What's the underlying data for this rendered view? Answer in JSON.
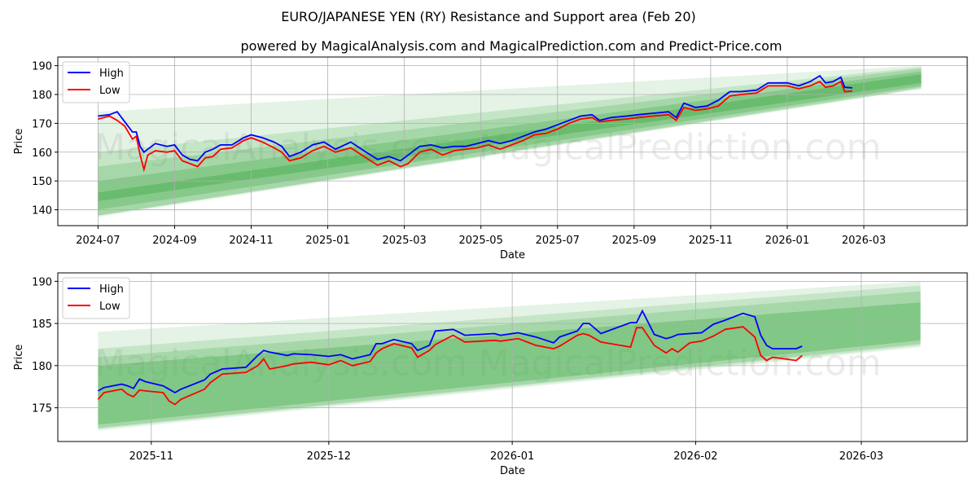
{
  "title": "EURO/JAPANESE YEN (RY) Resistance and Support area (Feb 20)",
  "subtitle": "powered by MagicalAnalysis.com and MagicalPrediction.com and Predict-Price.com",
  "watermarks": [
    "MagicalAnalysis.com",
    "MagicalPrediction.com"
  ],
  "colors": {
    "high": "#0000ff",
    "low": "#ff0000",
    "band": "#4caf50"
  },
  "chart_data": [
    {
      "type": "line",
      "xunit": "months since 2024-07-01",
      "xlabel": "Date",
      "ylabel": "Price",
      "ylim": [
        134.5,
        193
      ],
      "xlim": [
        -1.05,
        22.7
      ],
      "xticks": [
        {
          "v": 0,
          "label": "2024-07"
        },
        {
          "v": 2,
          "label": "2024-09"
        },
        {
          "v": 4,
          "label": "2024-11"
        },
        {
          "v": 6,
          "label": "2025-01"
        },
        {
          "v": 8,
          "label": "2025-03"
        },
        {
          "v": 10,
          "label": "2025-05"
        },
        {
          "v": 12,
          "label": "2025-07"
        },
        {
          "v": 14,
          "label": "2025-09"
        },
        {
          "v": 16,
          "label": "2025-11"
        },
        {
          "v": 18,
          "label": "2026-01"
        },
        {
          "v": 20,
          "label": "2026-03"
        }
      ],
      "yticks": [
        140,
        150,
        160,
        170,
        180,
        190
      ],
      "grid": true,
      "legend": "top-left",
      "legend_labels": [
        "High",
        "Low"
      ],
      "bands": {
        "x": [
          0,
          21.5
        ],
        "layers": [
          {
            "start": [
              137.5,
              174
            ],
            "end": [
              182,
              190
            ],
            "opacity": 0.15
          },
          {
            "start": [
              138,
              160
            ],
            "end": [
              182,
              189.5
            ],
            "opacity": 0.2
          },
          {
            "start": [
              138,
              155
            ],
            "end": [
              182.5,
              189
            ],
            "opacity": 0.25
          },
          {
            "start": [
              140,
              150
            ],
            "end": [
              183,
              188
            ],
            "opacity": 0.35
          },
          {
            "start": [
              143,
              146
            ],
            "end": [
              184,
              187
            ],
            "opacity": 0.5
          }
        ]
      },
      "x": [
        0,
        0.3,
        0.5,
        0.7,
        0.9,
        1.0,
        1.1,
        1.2,
        1.3,
        1.5,
        1.8,
        2.0,
        2.2,
        2.4,
        2.6,
        2.8,
        3.0,
        3.2,
        3.5,
        3.8,
        4.0,
        4.3,
        4.6,
        4.8,
        5.0,
        5.3,
        5.6,
        5.9,
        6.2,
        6.6,
        7.0,
        7.3,
        7.6,
        7.9,
        8.1,
        8.4,
        8.7,
        9.0,
        9.3,
        9.6,
        9.9,
        10.2,
        10.5,
        10.8,
        11.1,
        11.4,
        11.7,
        12.0,
        12.3,
        12.6,
        12.9,
        13.1,
        13.4,
        13.8,
        14.1,
        14.5,
        14.9,
        15.1,
        15.3,
        15.6,
        15.9,
        16.2,
        16.5,
        16.8,
        17.2,
        17.5,
        18.0,
        18.3,
        18.6,
        18.85,
        19.0,
        19.2,
        19.4,
        19.5,
        19.7
      ],
      "series": [
        {
          "name": "High",
          "values": [
            172.5,
            173,
            174,
            170.5,
            167,
            167,
            162,
            160,
            161,
            163,
            162,
            162.5,
            159,
            157.5,
            157,
            160,
            161,
            162.5,
            162.5,
            165,
            166,
            165,
            163.5,
            162,
            158.5,
            160,
            162.5,
            163.5,
            161,
            163.5,
            160,
            157.5,
            158.5,
            157,
            159,
            162,
            162.5,
            161.5,
            162,
            162,
            163,
            164,
            163,
            164,
            165.5,
            167,
            168,
            169.5,
            171,
            172.5,
            173,
            171,
            172,
            172.5,
            173,
            173.5,
            174,
            172,
            177,
            175.5,
            176,
            178,
            181,
            181,
            181.5,
            184,
            184,
            183,
            184.5,
            186.5,
            184,
            184.5,
            186,
            182.5,
            182.3
          ]
        },
        {
          "name": "Low",
          "values": [
            171.5,
            172.5,
            171,
            169,
            164.5,
            165.5,
            159,
            154,
            159,
            160.5,
            160,
            160.5,
            157,
            156,
            155,
            158,
            158.5,
            161,
            161.5,
            164,
            165,
            163.5,
            161.5,
            160,
            157,
            158,
            160.5,
            162,
            160,
            161.5,
            158,
            155.5,
            157,
            155,
            156,
            160,
            161,
            159,
            160.5,
            161,
            161.5,
            162.5,
            161,
            162.5,
            164,
            166,
            166.5,
            168,
            170,
            171.5,
            172,
            170.5,
            171,
            171.5,
            172,
            172.5,
            173,
            171,
            175.5,
            174.5,
            175,
            176,
            179.5,
            180,
            180.5,
            183,
            183,
            182,
            183,
            184.5,
            182.5,
            183,
            184.5,
            181,
            181.2
          ]
        }
      ]
    },
    {
      "type": "line",
      "xunit": "days since 2025-11-01",
      "xlabel": "Date",
      "ylabel": "Price",
      "ylim": [
        171,
        191
      ],
      "xlim": [
        -15.8,
        137.9
      ],
      "xticks": [
        {
          "v": 0,
          "label": "2025-11"
        },
        {
          "v": 30,
          "label": "2025-12"
        },
        {
          "v": 61,
          "label": "2026-01"
        },
        {
          "v": 92,
          "label": "2026-02"
        },
        {
          "v": 120,
          "label": "2026-03"
        }
      ],
      "yticks": [
        175,
        180,
        185,
        190
      ],
      "grid": true,
      "legend": "top-left",
      "legend_labels": [
        "High",
        "Low"
      ],
      "bands": {
        "x": [
          -9,
          130
        ],
        "layers": [
          {
            "start": [
              172.3,
              184
            ],
            "end": [
              182.2,
              190
            ],
            "opacity": 0.15
          },
          {
            "start": [
              172.5,
              182
            ],
            "end": [
              182.4,
              189.5
            ],
            "opacity": 0.2
          },
          {
            "start": [
              172.6,
              181
            ],
            "end": [
              182.6,
              188.8
            ],
            "opacity": 0.25
          },
          {
            "start": [
              173,
              180
            ],
            "end": [
              183,
              187.5
            ],
            "opacity": 0.4
          }
        ]
      },
      "x": [
        -9,
        -8,
        -5,
        -4,
        -3,
        -2,
        -1,
        2,
        3,
        4,
        5,
        9,
        10,
        12,
        16,
        18,
        19,
        20,
        23,
        24,
        27,
        30,
        32,
        34,
        37,
        38,
        39,
        41,
        44,
        45,
        47,
        48,
        51,
        53,
        58,
        59,
        62,
        65,
        68,
        69,
        72,
        73,
        74,
        76,
        81,
        82,
        83,
        85,
        87,
        88,
        89,
        91,
        93,
        95,
        97,
        100,
        102,
        103,
        104,
        105,
        109,
        110
      ],
      "series": [
        {
          "name": "High",
          "values": [
            177.0,
            177.4,
            177.8,
            177.6,
            177.3,
            178.4,
            178.1,
            177.6,
            177.2,
            176.8,
            177.2,
            178.3,
            179.0,
            179.6,
            179.8,
            181.2,
            181.8,
            181.6,
            181.2,
            181.4,
            181.3,
            181.1,
            181.3,
            180.8,
            181.3,
            182.6,
            182.6,
            183.1,
            182.6,
            181.8,
            182.4,
            184.1,
            184.3,
            183.6,
            183.8,
            183.6,
            183.9,
            183.4,
            182.7,
            183.4,
            184.1,
            185.0,
            185.0,
            183.8,
            185.1,
            185.1,
            186.5,
            183.7,
            183.2,
            183.4,
            183.7,
            183.8,
            183.9,
            184.9,
            185.4,
            186.2,
            185.8,
            183.6,
            182.4,
            182.0,
            182.0,
            182.3
          ]
        },
        {
          "name": "Low",
          "values": [
            176.0,
            176.8,
            177.2,
            176.6,
            176.3,
            177.1,
            177.0,
            176.8,
            175.8,
            175.4,
            176.0,
            177.2,
            178.0,
            179.0,
            179.2,
            180.0,
            180.8,
            179.6,
            180.0,
            180.2,
            180.4,
            180.1,
            180.6,
            180.0,
            180.5,
            181.5,
            182.0,
            182.6,
            182.1,
            181.0,
            181.8,
            182.5,
            183.6,
            182.8,
            183.0,
            182.9,
            183.2,
            182.4,
            182.0,
            182.3,
            183.6,
            183.8,
            183.6,
            182.8,
            182.2,
            184.5,
            184.5,
            182.4,
            181.5,
            182.0,
            181.6,
            182.7,
            182.9,
            183.5,
            184.3,
            184.6,
            183.4,
            181.2,
            180.6,
            181.0,
            180.6,
            181.2
          ]
        }
      ]
    }
  ]
}
